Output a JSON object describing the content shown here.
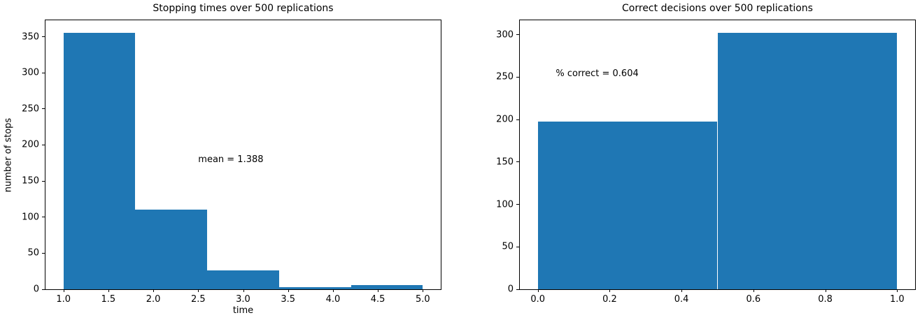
{
  "figure": {
    "background": "#ffffff",
    "bar_color": "#1f77b4",
    "axis_color": "#000000",
    "text_color": "#000000"
  },
  "chart_data": [
    {
      "type": "bar",
      "style": "histogram",
      "title": "Stopping times over 500 replications",
      "xlabel": "time",
      "ylabel": "number of stops",
      "bin_edges": [
        1.0,
        1.8,
        2.6,
        3.4,
        4.2,
        5.0
      ],
      "values": [
        355,
        110,
        26,
        3,
        6
      ],
      "xlim": [
        0.8,
        5.2
      ],
      "ylim": [
        0,
        372.75
      ],
      "xticks": [
        1.0,
        1.5,
        2.0,
        2.5,
        3.0,
        3.5,
        4.0,
        4.5,
        5.0
      ],
      "xtick_labels": [
        "1.0",
        "1.5",
        "2.0",
        "2.5",
        "3.0",
        "3.5",
        "4.0",
        "4.5",
        "5.0"
      ],
      "yticks": [
        0,
        50,
        100,
        150,
        200,
        250,
        300,
        350
      ],
      "ytick_labels": [
        "0",
        "50",
        "100",
        "150",
        "200",
        "250",
        "300",
        "350"
      ],
      "grid": false,
      "annotation": {
        "text": "mean = 1.388",
        "x": 2.5,
        "y": 175
      }
    },
    {
      "type": "bar",
      "style": "histogram",
      "title": "Correct decisions over 500 replications",
      "xlabel": "",
      "ylabel": "",
      "bin_edges": [
        0.0,
        0.5,
        1.0
      ],
      "values": [
        198,
        302
      ],
      "xlim": [
        -0.05,
        1.05
      ],
      "ylim": [
        0,
        317.1
      ],
      "xticks": [
        0.0,
        0.2,
        0.4,
        0.6,
        0.8,
        1.0
      ],
      "xtick_labels": [
        "0.0",
        "0.2",
        "0.4",
        "0.6",
        "0.8",
        "1.0"
      ],
      "yticks": [
        0,
        50,
        100,
        150,
        200,
        250,
        300
      ],
      "ytick_labels": [
        "0",
        "50",
        "100",
        "150",
        "200",
        "250",
        "300"
      ],
      "grid": false,
      "annotation": {
        "text": "% correct = 0.604",
        "x": 0.05,
        "y": 250
      }
    }
  ]
}
